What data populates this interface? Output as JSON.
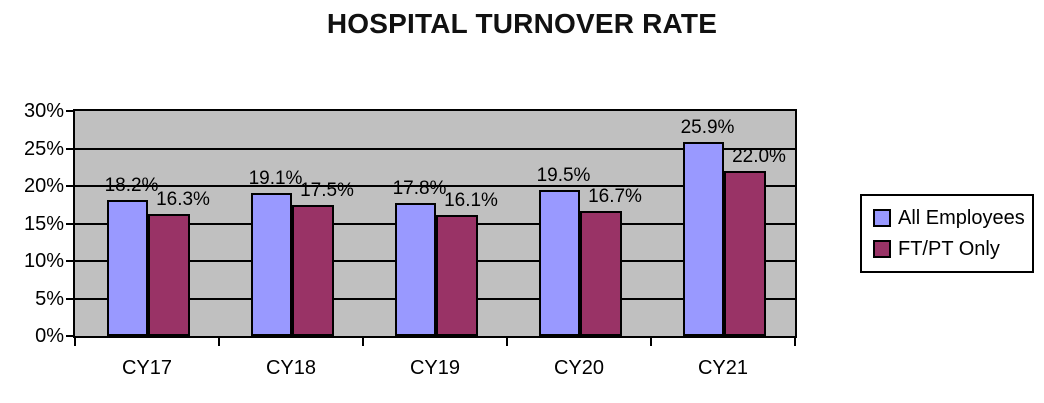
{
  "title": "HOSPITAL TURNOVER RATE",
  "chart_data": {
    "type": "bar",
    "title": "HOSPITAL TURNOVER RATE",
    "categories": [
      "CY17",
      "CY18",
      "CY19",
      "CY20",
      "CY21"
    ],
    "series": [
      {
        "name": "All Employees",
        "color": "#9999FF",
        "values": [
          18.2,
          19.1,
          17.8,
          19.5,
          25.9
        ],
        "data_labels": [
          "18.2%",
          "19.1%",
          "17.8%",
          "19.5%",
          "25.9%"
        ]
      },
      {
        "name": "FT/PT Only",
        "color": "#993366",
        "values": [
          16.3,
          17.5,
          16.1,
          16.7,
          22.0
        ],
        "data_labels": [
          "16.3%",
          "17.5%",
          "16.1%",
          "16.7%",
          "22.0%"
        ]
      }
    ],
    "y_tick_labels": [
      "0%",
      "5%",
      "10%",
      "15%",
      "20%",
      "25%",
      "30%"
    ],
    "ylim": [
      0,
      30
    ],
    "y_step": 5,
    "grid": true,
    "legend_position": "right",
    "plot_background_color": "#C0C0C0",
    "gridline_color": "#000000",
    "bar_border_color": "#000000"
  }
}
